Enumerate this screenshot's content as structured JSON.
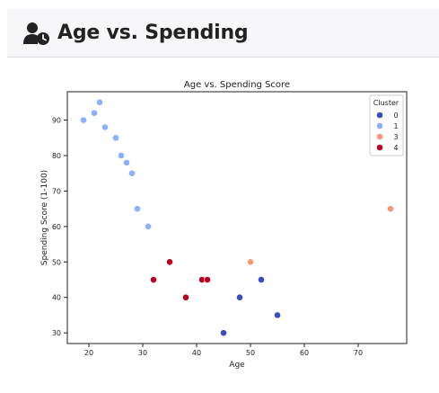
{
  "header": {
    "title": "Age vs. Spending",
    "icon": "user-clock-icon"
  },
  "chart_data": {
    "type": "scatter",
    "title": "Age vs. Spending Score",
    "xlabel": "Age",
    "ylabel": "Spending Score (1-100)",
    "xlim": [
      16,
      79
    ],
    "ylim": [
      27,
      98
    ],
    "xticks": [
      20,
      30,
      40,
      50,
      60,
      70
    ],
    "yticks": [
      30,
      40,
      50,
      60,
      70,
      80,
      90
    ],
    "grid": false,
    "legend": {
      "title": "Cluster",
      "position": "top-right"
    },
    "series": [
      {
        "name": "0",
        "color": "#3b4cc0",
        "points": [
          [
            45,
            30
          ],
          [
            48,
            40
          ],
          [
            52,
            45
          ],
          [
            55,
            35
          ]
        ]
      },
      {
        "name": "1",
        "color": "#8db0fe",
        "points": [
          [
            19,
            90
          ],
          [
            21,
            92
          ],
          [
            22,
            95
          ],
          [
            23,
            88
          ],
          [
            25,
            85
          ],
          [
            26,
            80
          ],
          [
            27,
            78
          ],
          [
            28,
            75
          ],
          [
            29,
            65
          ],
          [
            31,
            60
          ]
        ]
      },
      {
        "name": "3",
        "color": "#f49a7b",
        "points": [
          [
            50,
            50
          ],
          [
            76,
            65
          ]
        ]
      },
      {
        "name": "4",
        "color": "#b40426",
        "points": [
          [
            32,
            45
          ],
          [
            35,
            50
          ],
          [
            38,
            40
          ],
          [
            41,
            45
          ],
          [
            42,
            45
          ]
        ]
      }
    ]
  }
}
